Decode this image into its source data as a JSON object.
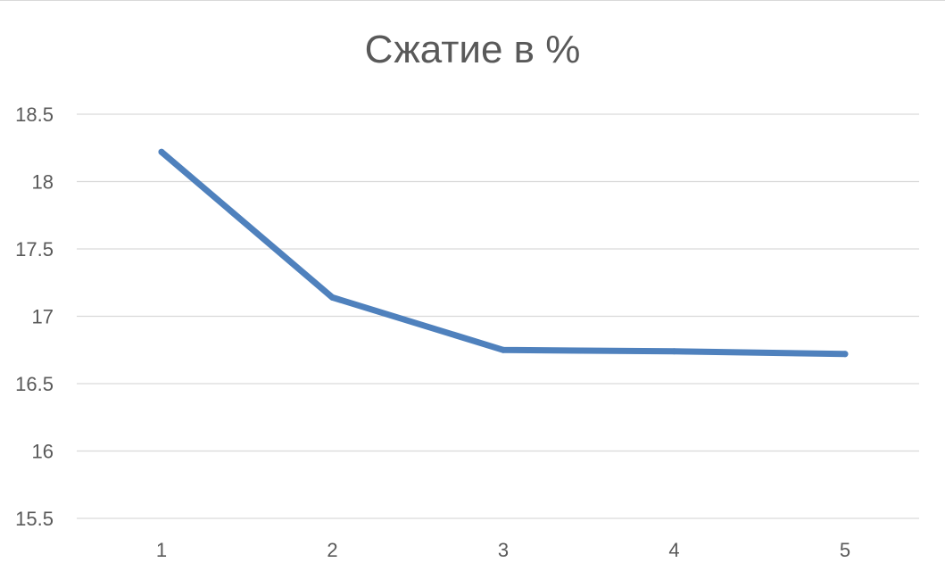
{
  "chart_data": {
    "type": "line",
    "title": "Сжатие в %",
    "xlabel": "",
    "ylabel": "",
    "categories": [
      "1",
      "2",
      "3",
      "4",
      "5"
    ],
    "y_ticks": [
      "15.5",
      "16",
      "16.5",
      "17",
      "17.5",
      "18",
      "18.5"
    ],
    "ylim": [
      15.5,
      18.5
    ],
    "grid": true,
    "legend": "none",
    "series": [
      {
        "values": [
          18.22,
          17.14,
          16.75,
          16.74,
          16.72
        ],
        "color": "#4f81bd"
      }
    ]
  }
}
